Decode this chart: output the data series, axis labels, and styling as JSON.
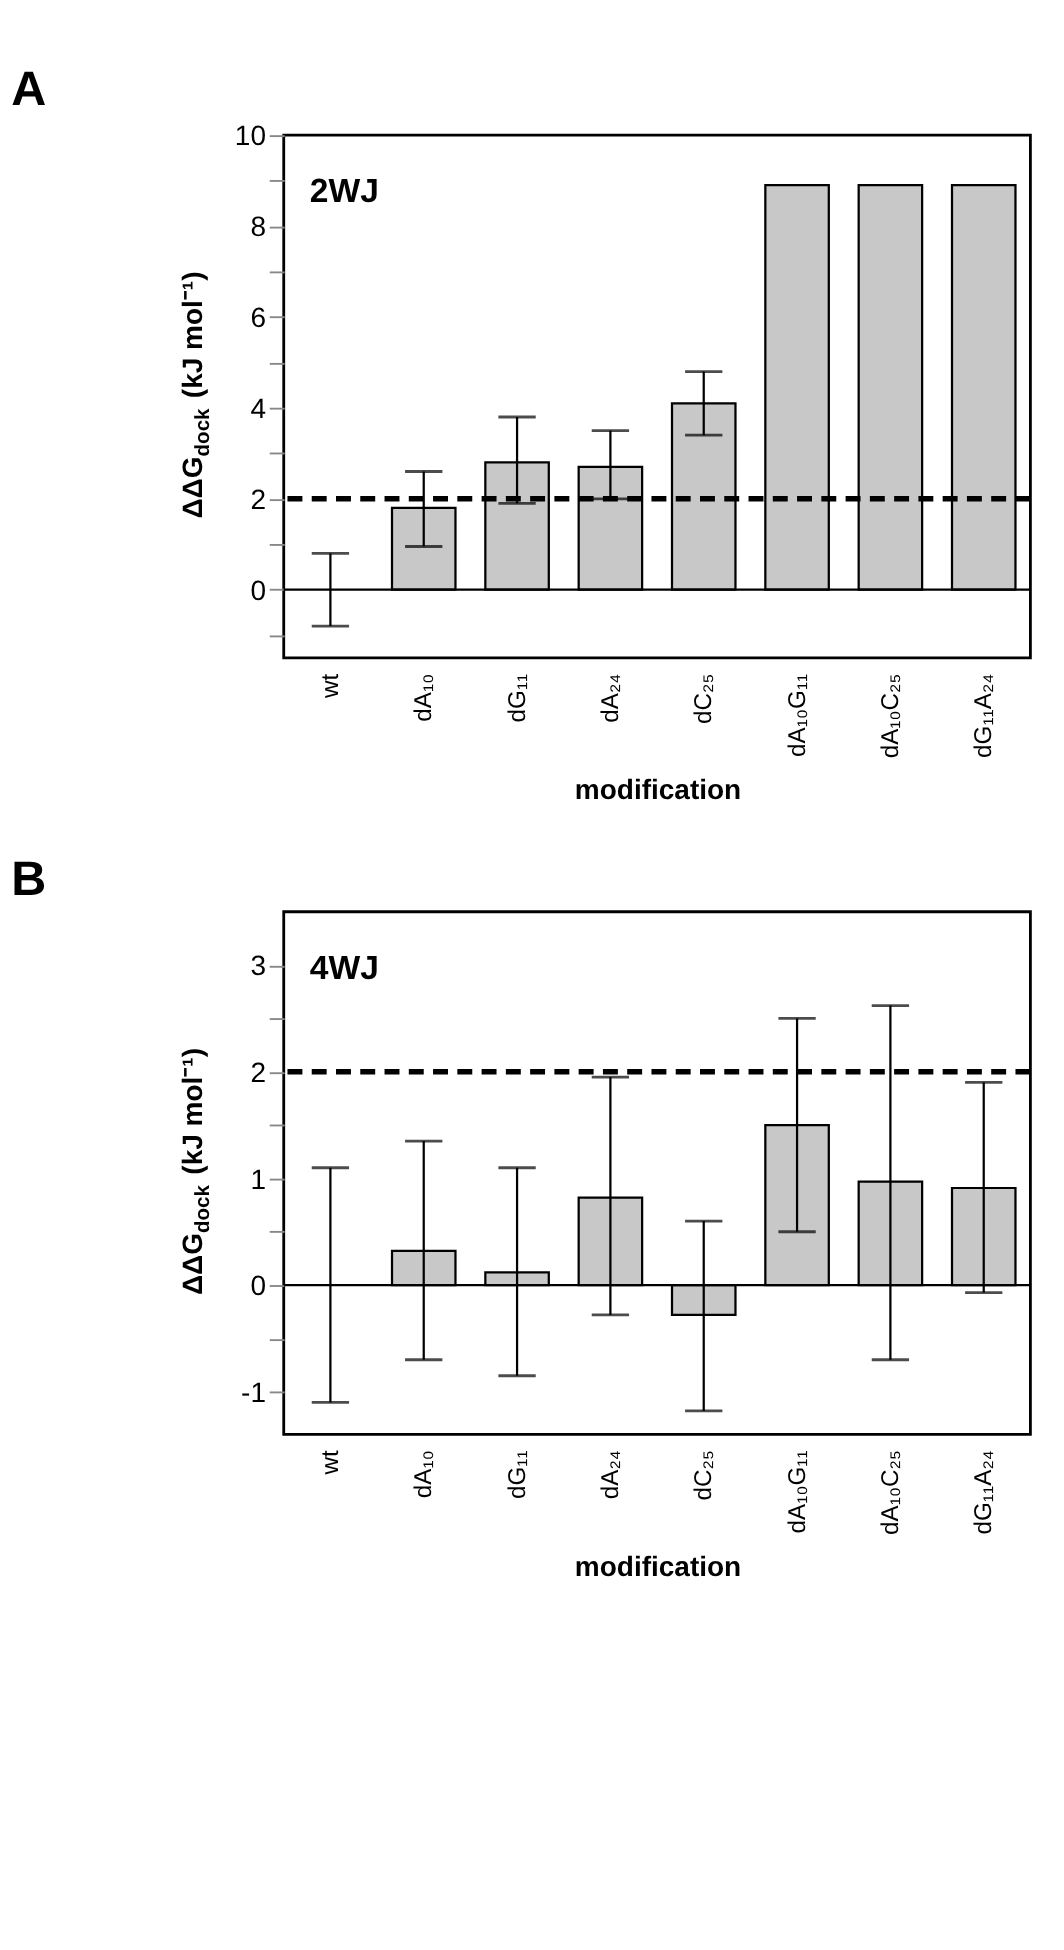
{
  "chart_data": [
    {
      "type": "bar",
      "title": "A",
      "xlabel": "modification",
      "ylabel": "ΔΔG$_{dock}$ (kJ mol⁻¹)",
      "categories": [
        "wt",
        "dA₁₀",
        "dG₁₁",
        "dA₂₄",
        "dC₂₅",
        "dA₁₀G₁₁",
        "dA₁₀C₂₅",
        "dG₁₁A₂₄"
      ],
      "values": [
        0,
        1.8,
        2.8,
        2.7,
        4.1,
        8.9,
        8.9,
        8.9
      ],
      "errors": [
        [
          -0.8,
          0.8
        ],
        [
          0.95,
          2.6
        ],
        [
          1.9,
          3.8
        ],
        [
          2.0,
          3.5
        ],
        [
          3.4,
          4.8
        ],
        null,
        null,
        null
      ],
      "color": "#c8c8c8",
      "ylim": [
        -1.5,
        10
      ],
      "yticks": [
        {
          "value": -1,
          "label": null
        },
        0,
        {
          "value": 1,
          "label": null
        },
        2,
        {
          "value": 3,
          "label": null
        },
        4,
        {
          "value": 5,
          "label": null
        },
        6,
        {
          "value": 7,
          "label": null
        },
        8,
        {
          "value": 9,
          "label": null
        },
        10
      ],
      "annotations": [
        "2WJ"
      ],
      "ref_lines": [
        {
          "axis": "y",
          "value": 2,
          "line_style": "dashed"
        },
        {
          "axis": "y",
          "value": 0,
          "line_style": "solid"
        }
      ],
      "grid": false
    },
    {
      "type": "bar",
      "title": "B",
      "xlabel": "modification",
      "ylabel": "ΔΔG$_{dock}$ (kJ mol⁻¹)",
      "categories": [
        "wt",
        "dA₁₀",
        "dG₁₁",
        "dA₂₄",
        "dC₂₅",
        "dA₁₀G₁₁",
        "dA₁₀C₂₅",
        "dG₁₁A₂₄"
      ],
      "values": [
        0,
        0.32,
        0.12,
        0.82,
        -0.28,
        1.5,
        0.97,
        0.91
      ],
      "errors": [
        [
          -1.1,
          1.1
        ],
        [
          -0.7,
          1.35
        ],
        [
          -0.85,
          1.1
        ],
        [
          -0.28,
          1.95
        ],
        [
          -1.18,
          0.6
        ],
        [
          0.5,
          2.5
        ],
        [
          -0.7,
          2.62
        ],
        [
          -0.07,
          1.9
        ]
      ],
      "color": "#c8c8c8",
      "ylim": [
        -1.4,
        3.5
      ],
      "yticks": [
        -1,
        {
          "value": -0.5,
          "label": null
        },
        0,
        {
          "value": 0.5,
          "label": null
        },
        1,
        {
          "value": 1.5,
          "label": null
        },
        2,
        {
          "value": 2.5,
          "label": null
        },
        3
      ],
      "annotations": [
        "4WJ"
      ],
      "ref_lines": [
        {
          "axis": "y",
          "value": 2,
          "line_style": "dashed"
        },
        {
          "axis": "y",
          "value": 0,
          "line_style": "solid"
        }
      ],
      "grid": false
    }
  ]
}
